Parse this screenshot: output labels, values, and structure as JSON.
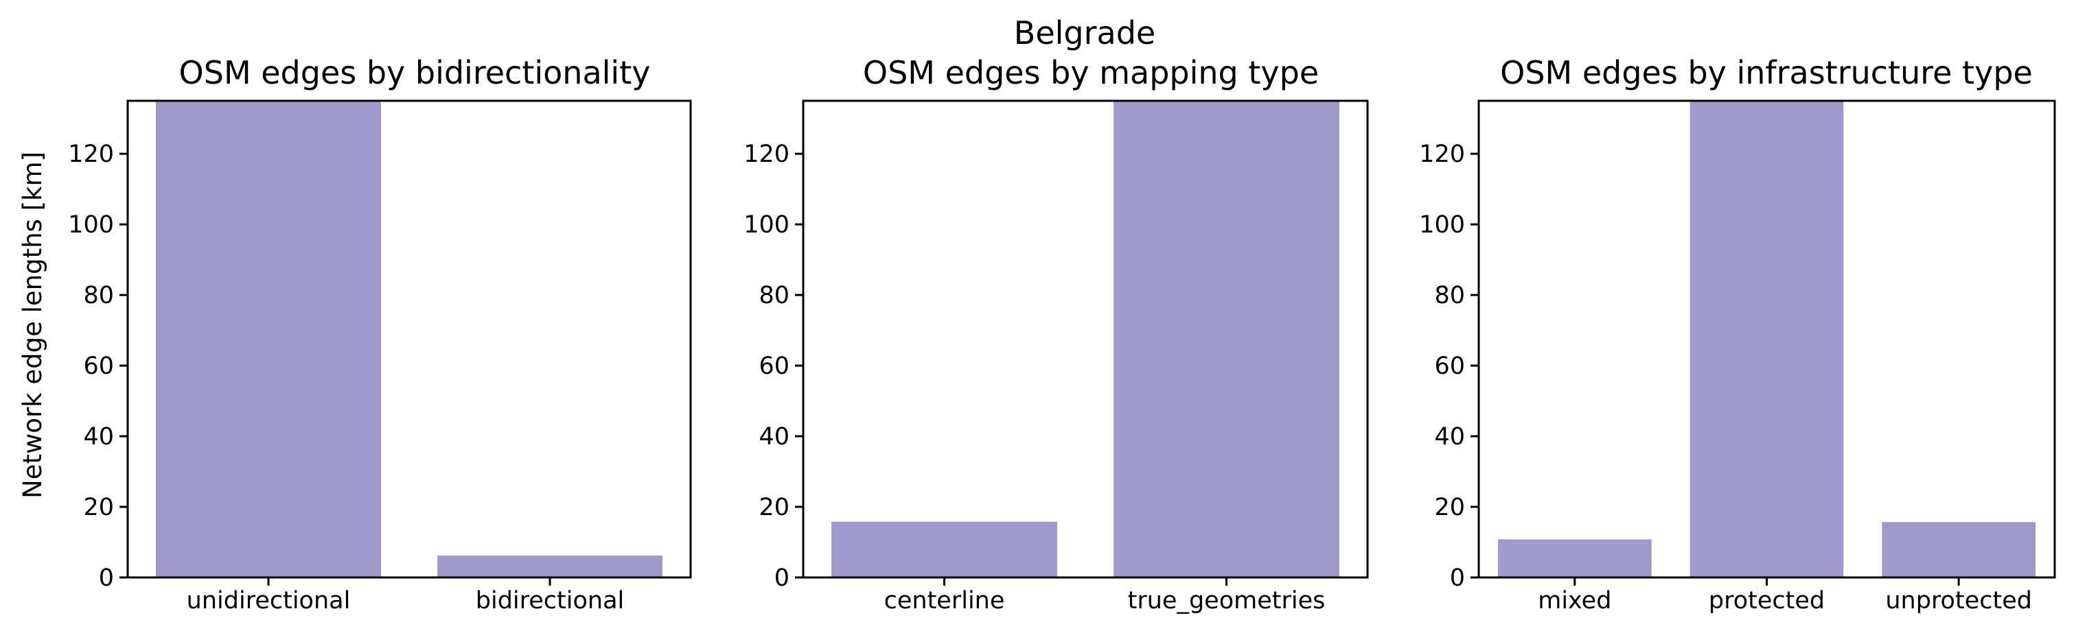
{
  "figure": {
    "suptitle": "Belgrade",
    "ylabel": "Network edge lengths [km]",
    "bar_color": "#a09aca"
  },
  "chart_data": [
    {
      "type": "bar",
      "title": "OSM edges by bidirectionality",
      "xlabel": "",
      "ylabel": "Network edge lengths [km]",
      "categories": [
        "unidirectional",
        "bidirectional"
      ],
      "values": [
        135,
        6.2
      ],
      "ylim": [
        0,
        135
      ],
      "yticks": [
        0,
        20,
        40,
        60,
        80,
        100,
        120
      ],
      "grid": false
    },
    {
      "type": "bar",
      "title": "OSM edges by mapping type",
      "xlabel": "",
      "ylabel": "",
      "categories": [
        "centerline",
        "true_geometries"
      ],
      "values": [
        15.8,
        135
      ],
      "ylim": [
        0,
        135
      ],
      "yticks": [
        0,
        20,
        40,
        60,
        80,
        100,
        120
      ],
      "grid": false
    },
    {
      "type": "bar",
      "title": "OSM edges by infrastructure type",
      "xlabel": "",
      "ylabel": "",
      "categories": [
        "mixed",
        "protected",
        "unprotected"
      ],
      "values": [
        10.8,
        135,
        15.7
      ],
      "ylim": [
        0,
        135
      ],
      "yticks": [
        0,
        20,
        40,
        60,
        80,
        100,
        120
      ],
      "grid": false
    }
  ]
}
